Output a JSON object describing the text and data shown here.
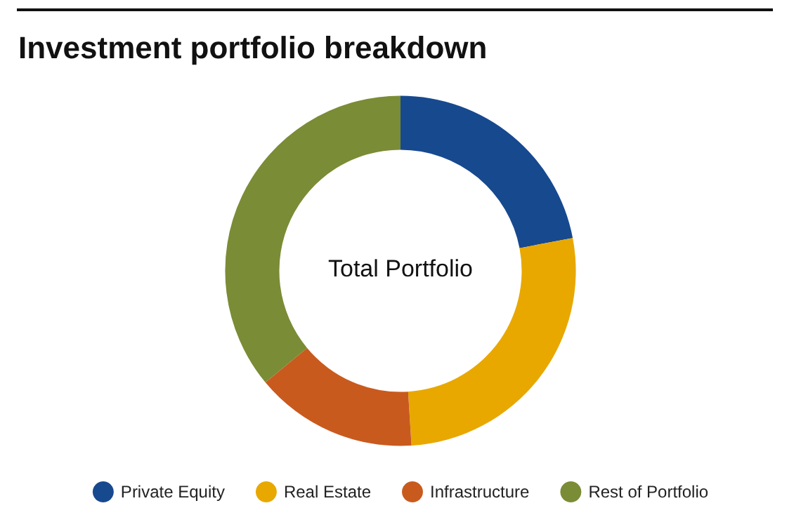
{
  "chart_data": {
    "type": "donut",
    "title": "Investment portfolio breakdown",
    "categories": [
      "Private Equity",
      "Real Estate",
      "Infrastructure",
      "Rest of Portfolio"
    ],
    "values": [
      22,
      27,
      15,
      36
    ],
    "colors": [
      "#17498f",
      "#e8a800",
      "#c95a1e",
      "#7a8c35"
    ],
    "annotations": [
      "Total Portfolio"
    ],
    "legend": "bottom"
  }
}
